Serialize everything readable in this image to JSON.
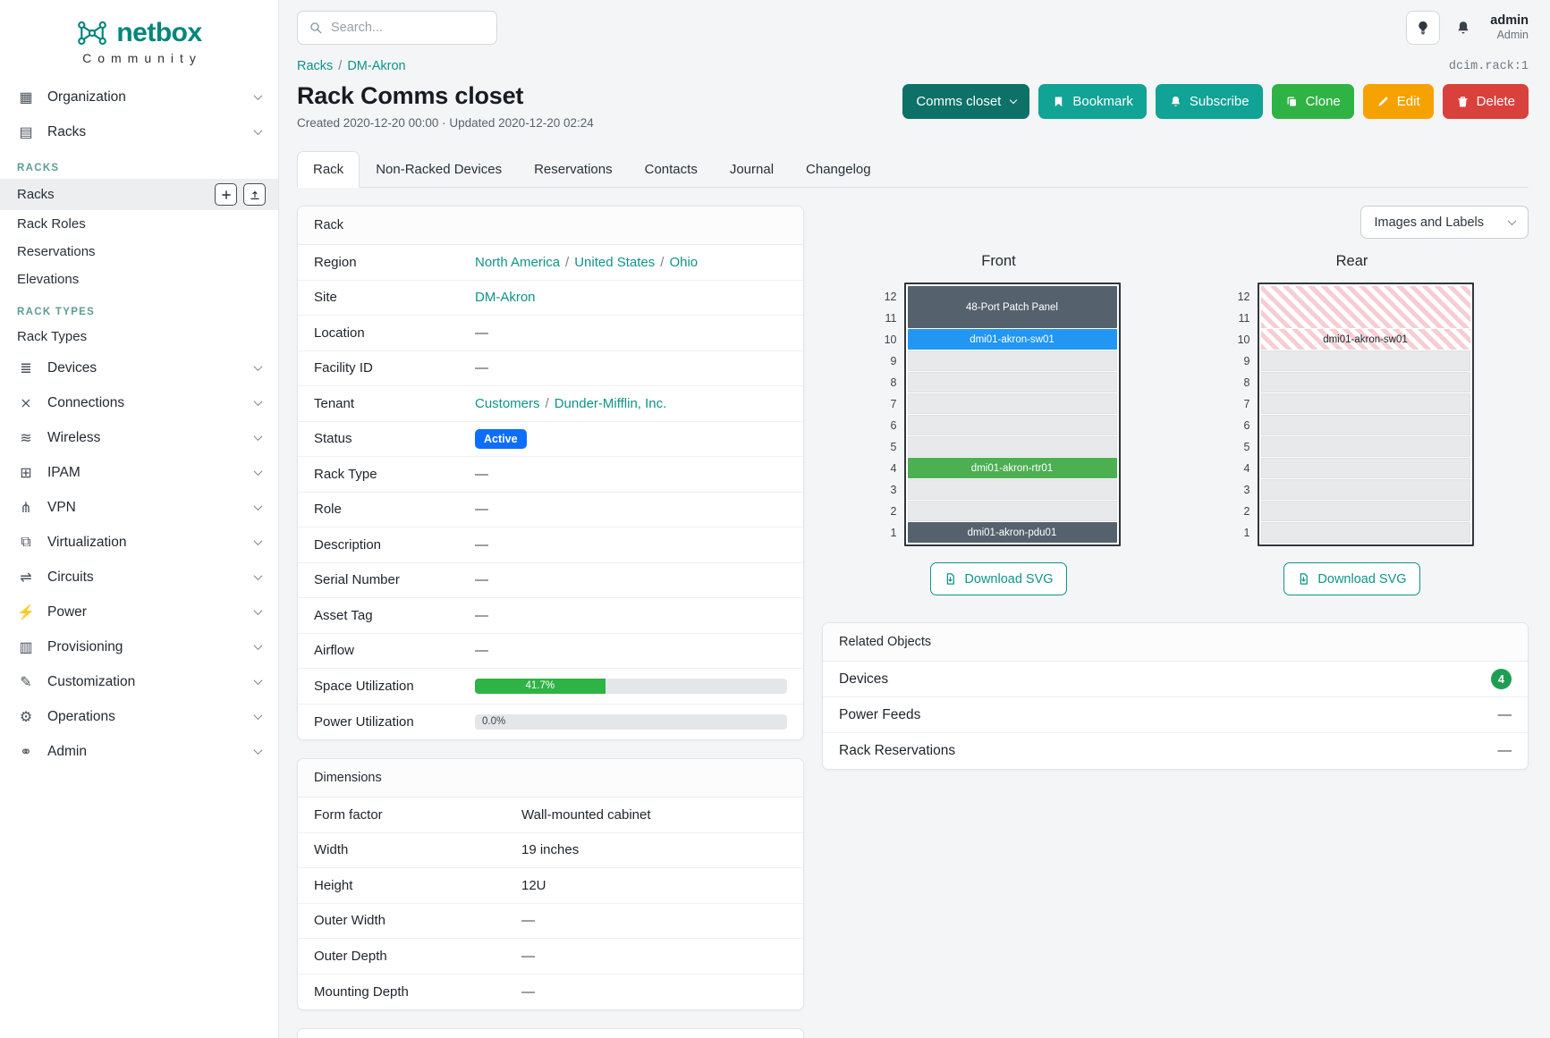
{
  "colors": {
    "brand_teal": "#00857a",
    "link_teal": "#0d9488",
    "button_teal": "#10a396",
    "button_dark_teal": "#0d7168",
    "button_green": "#2fb344",
    "button_yellow": "#f5a200",
    "button_red": "#d9413d",
    "status_active_blue": "#0d6efd",
    "utilization_green": "#2fb344",
    "count_green": "#1f9d55",
    "section_teal": "#5e9c93"
  },
  "brand": {
    "name": "netbox",
    "community": "Community"
  },
  "topbar": {
    "search_placeholder": "Search...",
    "user_name": "admin",
    "user_role": "Admin"
  },
  "sidebar": {
    "items": [
      {
        "type": "group",
        "label": "Organization",
        "icon": "organization-icon",
        "glyph": "▦"
      },
      {
        "type": "group",
        "label": "Racks",
        "icon": "racks-icon",
        "glyph": "▤",
        "expanded": true
      },
      {
        "type": "section",
        "label": "RACKS"
      },
      {
        "type": "link",
        "label": "Racks",
        "active": true,
        "quick_add": true
      },
      {
        "type": "link",
        "label": "Rack Roles"
      },
      {
        "type": "link",
        "label": "Reservations"
      },
      {
        "type": "link",
        "label": "Elevations"
      },
      {
        "type": "section",
        "label": "RACK TYPES"
      },
      {
        "type": "link",
        "label": "Rack Types"
      },
      {
        "type": "group",
        "label": "Devices",
        "icon": "devices-icon",
        "glyph": "≣"
      },
      {
        "type": "group",
        "label": "Connections",
        "icon": "connections-icon",
        "glyph": "⨯"
      },
      {
        "type": "group",
        "label": "Wireless",
        "icon": "wireless-icon",
        "glyph": "≋"
      },
      {
        "type": "group",
        "label": "IPAM",
        "icon": "ipam-icon",
        "glyph": "⊞"
      },
      {
        "type": "group",
        "label": "VPN",
        "icon": "vpn-icon",
        "glyph": "⋔"
      },
      {
        "type": "group",
        "label": "Virtualization",
        "icon": "virtualization-icon",
        "glyph": "⧉"
      },
      {
        "type": "group",
        "label": "Circuits",
        "icon": "circuits-icon",
        "glyph": "⇌"
      },
      {
        "type": "group",
        "label": "Power",
        "icon": "power-icon",
        "glyph": "⚡"
      },
      {
        "type": "group",
        "label": "Provisioning",
        "icon": "provisioning-icon",
        "glyph": "▥"
      },
      {
        "type": "group",
        "label": "Customization",
        "icon": "customization-icon",
        "glyph": "✎"
      },
      {
        "type": "group",
        "label": "Operations",
        "icon": "operations-icon",
        "glyph": "⚙"
      },
      {
        "type": "group",
        "label": "Admin",
        "icon": "admin-icon",
        "glyph": "⚭"
      }
    ]
  },
  "breadcrumb": {
    "items": [
      "Racks",
      "DM-Akron"
    ],
    "separator": "/"
  },
  "object_ref": "dcim.rack:1",
  "page": {
    "title": "Rack Comms closet",
    "meta": "Created 2020-12-20 00:00 · Updated 2020-12-20 02:24"
  },
  "actions": [
    {
      "name": "comms-closet-button",
      "label": "Comms closet",
      "style": "darkteal",
      "caret": true
    },
    {
      "name": "bookmark-button",
      "label": "Bookmark",
      "style": "teal",
      "icon": "bookmark-icon"
    },
    {
      "name": "subscribe-button",
      "label": "Subscribe",
      "style": "teal",
      "icon": "bell-icon"
    },
    {
      "name": "clone-button",
      "label": "Clone",
      "style": "green",
      "icon": "copy-icon"
    },
    {
      "name": "edit-button",
      "label": "Edit",
      "style": "yellow",
      "icon": "pencil-icon"
    },
    {
      "name": "delete-button",
      "label": "Delete",
      "style": "red",
      "icon": "trash-icon"
    }
  ],
  "tabs": [
    {
      "label": "Rack",
      "active": true
    },
    {
      "label": "Non-Racked Devices"
    },
    {
      "label": "Reservations"
    },
    {
      "label": "Contacts"
    },
    {
      "label": "Journal"
    },
    {
      "label": "Changelog"
    }
  ],
  "rack_panel": {
    "title": "Rack",
    "rows": [
      {
        "label": "Region",
        "type": "links",
        "links": [
          "North America",
          "United States",
          "Ohio"
        ]
      },
      {
        "label": "Site",
        "type": "links",
        "links": [
          "DM-Akron"
        ]
      },
      {
        "label": "Location",
        "type": "dash",
        "value": "—"
      },
      {
        "label": "Facility ID",
        "type": "dash",
        "value": "—"
      },
      {
        "label": "Tenant",
        "type": "links",
        "links": [
          "Customers",
          "Dunder-Mifflin, Inc."
        ]
      },
      {
        "label": "Status",
        "type": "badge",
        "value": "Active",
        "color": "#0d6efd"
      },
      {
        "label": "Rack Type",
        "type": "dash",
        "value": "—"
      },
      {
        "label": "Role",
        "type": "dash",
        "value": "—"
      },
      {
        "label": "Description",
        "type": "dash",
        "value": "—"
      },
      {
        "label": "Serial Number",
        "type": "dash",
        "value": "—"
      },
      {
        "label": "Asset Tag",
        "type": "dash",
        "value": "—"
      },
      {
        "label": "Airflow",
        "type": "dash",
        "value": "—"
      },
      {
        "label": "Space Utilization",
        "type": "progress",
        "percent": 41.7,
        "text": "41.7%",
        "color": "#2fb344"
      },
      {
        "label": "Power Utilization",
        "type": "progress",
        "percent": 0,
        "text": "0.0%",
        "color": "#2fb344"
      }
    ]
  },
  "dimensions_panel": {
    "title": "Dimensions",
    "rows": [
      {
        "label": "Form factor",
        "type": "text",
        "value": "Wall-mounted cabinet"
      },
      {
        "label": "Width",
        "type": "text",
        "value": "19 inches"
      },
      {
        "label": "Height",
        "type": "text",
        "value": "12U"
      },
      {
        "label": "Outer Width",
        "type": "dash",
        "value": "—"
      },
      {
        "label": "Outer Depth",
        "type": "dash",
        "value": "—"
      },
      {
        "label": "Mounting Depth",
        "type": "dash",
        "value": "—"
      }
    ]
  },
  "elevation": {
    "view_selector": "Images and Labels",
    "download_label": "Download SVG",
    "unit_count": 12,
    "views": [
      {
        "title": "Front",
        "slots": [
          {
            "kind": "device",
            "span": 2,
            "label": "48-Port Patch Panel",
            "color": "#55626d"
          },
          {
            "kind": "device",
            "span": 1,
            "label": "dmi01-akron-sw01",
            "color": "#2196f3"
          },
          {
            "kind": "empty",
            "span": 1
          },
          {
            "kind": "empty",
            "span": 1
          },
          {
            "kind": "empty",
            "span": 1
          },
          {
            "kind": "empty",
            "span": 1
          },
          {
            "kind": "empty",
            "span": 1
          },
          {
            "kind": "device",
            "span": 1,
            "label": "dmi01-akron-rtr01",
            "color": "#4caf50"
          },
          {
            "kind": "empty",
            "span": 1
          },
          {
            "kind": "empty",
            "span": 1
          },
          {
            "kind": "device",
            "span": 1,
            "label": "dmi01-akron-pdu01",
            "color": "#55626d"
          }
        ]
      },
      {
        "title": "Rear",
        "slots": [
          {
            "kind": "reserved",
            "span": 2
          },
          {
            "kind": "reserved",
            "span": 1,
            "label": "dmi01-akron-sw01"
          },
          {
            "kind": "empty",
            "span": 1
          },
          {
            "kind": "empty",
            "span": 1
          },
          {
            "kind": "empty",
            "span": 1
          },
          {
            "kind": "empty",
            "span": 1
          },
          {
            "kind": "empty",
            "span": 1
          },
          {
            "kind": "empty",
            "span": 1
          },
          {
            "kind": "empty",
            "span": 1
          },
          {
            "kind": "empty",
            "span": 1
          },
          {
            "kind": "empty",
            "span": 1
          }
        ]
      }
    ]
  },
  "related_objects": {
    "title": "Related Objects",
    "rows": [
      {
        "label": "Devices",
        "count": "4",
        "count_color": "#1f9d55"
      },
      {
        "label": "Power Feeds",
        "value": "—"
      },
      {
        "label": "Rack Reservations",
        "value": "—"
      }
    ]
  }
}
